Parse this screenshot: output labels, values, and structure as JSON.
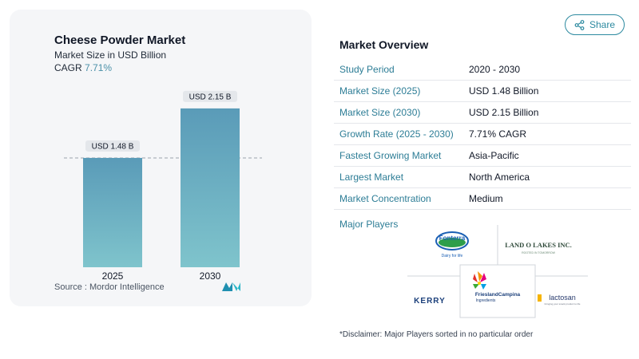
{
  "chart": {
    "title": "Cheese Powder Market",
    "subtitle": "Market Size in USD Billion",
    "cagr_label": "CAGR",
    "cagr_value": "7.71%",
    "source": "Source :  Mordor Intelligence"
  },
  "chart_data": {
    "type": "bar",
    "categories": [
      "2025",
      "2030"
    ],
    "values": [
      1.48,
      2.15
    ],
    "data_labels": [
      "USD 1.48 B",
      "USD 2.15 B"
    ],
    "ylim": [
      0,
      2.3
    ],
    "colors": [
      "#5a9bb8",
      "#7fc4cc"
    ],
    "reference_line": 1.48
  },
  "share": {
    "label": "Share"
  },
  "overview": {
    "title": "Market Overview",
    "rows": [
      {
        "key": "Study Period",
        "value": "2020 - 2030"
      },
      {
        "key": "Market Size (2025)",
        "value": "USD 1.48 Billion"
      },
      {
        "key": "Market Size (2030)",
        "value": "USD 2.15 Billion"
      },
      {
        "key": "Growth Rate (2025 - 2030)",
        "value": "7.71% CAGR"
      },
      {
        "key": "Fastest Growing Market",
        "value": "Asia-Pacific"
      },
      {
        "key": "Largest Market",
        "value": "North America"
      },
      {
        "key": "Market Concentration",
        "value": "Medium"
      }
    ]
  },
  "players": {
    "label": "Major Players",
    "logos": [
      {
        "name": "Fonterra",
        "tagline": "Dairy for life"
      },
      {
        "name": "LAND O LAKES INC.",
        "tagline": "ROOTED IN TOMORROW"
      },
      {
        "name": "KERRY",
        "tagline": ""
      },
      {
        "name": "FrieslandCampina",
        "tagline": "Ingredients"
      },
      {
        "name": "lactosan",
        "tagline": "bringing your snack product to life"
      }
    ]
  },
  "disclaimer": "*Disclaimer: Major Players sorted in no particular order"
}
